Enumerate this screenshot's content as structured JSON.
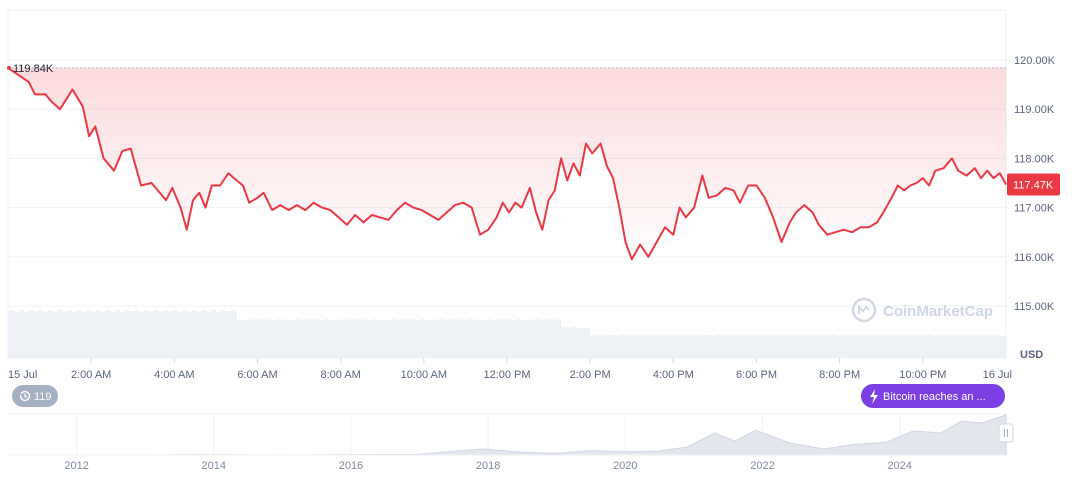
{
  "chart_data": {
    "type": "line",
    "currency_label": "USD",
    "start_value_label": "119.84K",
    "current_value_label": "117.47K",
    "yticks": [
      {
        "value": 115000,
        "label": "115.00K"
      },
      {
        "value": 116000,
        "label": "116.00K"
      },
      {
        "value": 117000,
        "label": "117.00K"
      },
      {
        "value": 118000,
        "label": "118.00K"
      },
      {
        "value": 119000,
        "label": "119.00K"
      },
      {
        "value": 120000,
        "label": "120.00K"
      }
    ],
    "xticks": [
      {
        "hour": 0,
        "label": "15 Jul"
      },
      {
        "hour": 2,
        "label": "2:00 AM"
      },
      {
        "hour": 4,
        "label": "4:00 AM"
      },
      {
        "hour": 6,
        "label": "6:00 AM"
      },
      {
        "hour": 8,
        "label": "8:00 AM"
      },
      {
        "hour": 10,
        "label": "10:00 AM"
      },
      {
        "hour": 12,
        "label": "12:00 PM"
      },
      {
        "hour": 14,
        "label": "2:00 PM"
      },
      {
        "hour": 16,
        "label": "4:00 PM"
      },
      {
        "hour": 18,
        "label": "6:00 PM"
      },
      {
        "hour": 20,
        "label": "8:00 PM"
      },
      {
        "hour": 22,
        "label": "10:00 PM"
      },
      {
        "hour": 24,
        "label": "16 Jul"
      }
    ],
    "series": [
      {
        "color": "#ea3943",
        "points": [
          [
            0.0,
            119840
          ],
          [
            0.5,
            119550
          ],
          [
            0.65,
            119300
          ],
          [
            0.9,
            119300
          ],
          [
            1.05,
            119150
          ],
          [
            1.25,
            119000
          ],
          [
            1.55,
            119400
          ],
          [
            1.8,
            119050
          ],
          [
            1.95,
            118450
          ],
          [
            2.1,
            118650
          ],
          [
            2.3,
            118000
          ],
          [
            2.55,
            117750
          ],
          [
            2.75,
            118150
          ],
          [
            2.95,
            118200
          ],
          [
            3.05,
            117900
          ],
          [
            3.2,
            117450
          ],
          [
            3.45,
            117500
          ],
          [
            3.6,
            117350
          ],
          [
            3.8,
            117150
          ],
          [
            3.95,
            117400
          ],
          [
            4.15,
            117000
          ],
          [
            4.3,
            116550
          ],
          [
            4.45,
            117150
          ],
          [
            4.6,
            117300
          ],
          [
            4.75,
            117000
          ],
          [
            4.9,
            117450
          ],
          [
            5.1,
            117450
          ],
          [
            5.3,
            117700
          ],
          [
            5.5,
            117550
          ],
          [
            5.65,
            117450
          ],
          [
            5.8,
            117100
          ],
          [
            6.0,
            117200
          ],
          [
            6.15,
            117300
          ],
          [
            6.35,
            116950
          ],
          [
            6.55,
            117050
          ],
          [
            6.75,
            116950
          ],
          [
            6.95,
            117050
          ],
          [
            7.15,
            116950
          ],
          [
            7.35,
            117100
          ],
          [
            7.55,
            117000
          ],
          [
            7.75,
            116950
          ],
          [
            7.95,
            116800
          ],
          [
            8.15,
            116650
          ],
          [
            8.35,
            116850
          ],
          [
            8.55,
            116700
          ],
          [
            8.75,
            116850
          ],
          [
            8.95,
            116800
          ],
          [
            9.15,
            116750
          ],
          [
            9.35,
            116950
          ],
          [
            9.55,
            117100
          ],
          [
            9.75,
            117000
          ],
          [
            9.95,
            116950
          ],
          [
            10.15,
            116850
          ],
          [
            10.35,
            116750
          ],
          [
            10.55,
            116900
          ],
          [
            10.75,
            117050
          ],
          [
            10.95,
            117100
          ],
          [
            11.15,
            117000
          ],
          [
            11.35,
            116450
          ],
          [
            11.55,
            116550
          ],
          [
            11.75,
            116800
          ],
          [
            11.9,
            117100
          ],
          [
            12.05,
            116900
          ],
          [
            12.2,
            117100
          ],
          [
            12.35,
            117000
          ],
          [
            12.55,
            117400
          ],
          [
            12.7,
            116900
          ],
          [
            12.85,
            116550
          ],
          [
            13.0,
            117150
          ],
          [
            13.15,
            117350
          ],
          [
            13.3,
            118000
          ],
          [
            13.45,
            117550
          ],
          [
            13.6,
            117900
          ],
          [
            13.75,
            117650
          ],
          [
            13.9,
            118300
          ],
          [
            14.05,
            118100
          ],
          [
            14.25,
            118300
          ],
          [
            14.4,
            117850
          ],
          [
            14.55,
            117600
          ],
          [
            14.7,
            117000
          ],
          [
            14.85,
            116300
          ],
          [
            15.0,
            115950
          ],
          [
            15.2,
            116250
          ],
          [
            15.4,
            116000
          ],
          [
            15.6,
            116300
          ],
          [
            15.8,
            116600
          ],
          [
            16.0,
            116450
          ],
          [
            16.15,
            117000
          ],
          [
            16.3,
            116800
          ],
          [
            16.5,
            117000
          ],
          [
            16.7,
            117650
          ],
          [
            16.85,
            117200
          ],
          [
            17.05,
            117250
          ],
          [
            17.25,
            117400
          ],
          [
            17.45,
            117350
          ],
          [
            17.6,
            117100
          ],
          [
            17.8,
            117450
          ],
          [
            18.0,
            117450
          ],
          [
            18.2,
            117200
          ],
          [
            18.4,
            116800
          ],
          [
            18.6,
            116300
          ],
          [
            18.8,
            116700
          ],
          [
            18.95,
            116900
          ],
          [
            19.15,
            117050
          ],
          [
            19.35,
            116900
          ],
          [
            19.5,
            116650
          ],
          [
            19.7,
            116450
          ],
          [
            19.9,
            116500
          ],
          [
            20.1,
            116550
          ],
          [
            20.3,
            116500
          ],
          [
            20.5,
            116600
          ],
          [
            20.7,
            116600
          ],
          [
            20.9,
            116700
          ],
          [
            21.05,
            116900
          ],
          [
            21.25,
            117200
          ],
          [
            21.4,
            117450
          ],
          [
            21.55,
            117350
          ],
          [
            21.7,
            117450
          ],
          [
            21.85,
            117500
          ],
          [
            22.0,
            117600
          ],
          [
            22.15,
            117450
          ],
          [
            22.3,
            117750
          ],
          [
            22.5,
            117800
          ],
          [
            22.7,
            118000
          ],
          [
            22.85,
            117750
          ],
          [
            23.05,
            117650
          ],
          [
            23.25,
            117800
          ],
          [
            23.4,
            117600
          ],
          [
            23.55,
            117750
          ],
          [
            23.7,
            117600
          ],
          [
            23.85,
            117700
          ],
          [
            24.0,
            117470
          ]
        ]
      }
    ],
    "volume_levels": [
      {
        "from_hour": 0.0,
        "to_hour": 5.5,
        "level": 0.96
      },
      {
        "from_hour": 5.5,
        "to_hour": 13.3,
        "level": 0.78
      },
      {
        "from_hour": 13.3,
        "to_hour": 14.0,
        "level": 0.62
      },
      {
        "from_hour": 14.0,
        "to_hour": 24.0,
        "level": 0.46
      }
    ],
    "navigator": {
      "year_ticks": [
        "2012",
        "2014",
        "2016",
        "2018",
        "2020",
        "2022",
        "2024"
      ],
      "points": [
        [
          2011.0,
          0.0
        ],
        [
          2012.0,
          0.0
        ],
        [
          2013.0,
          0.0
        ],
        [
          2013.8,
          0.01
        ],
        [
          2015.0,
          0.0
        ],
        [
          2016.0,
          0.01
        ],
        [
          2017.0,
          0.02
        ],
        [
          2017.9,
          0.15
        ],
        [
          2018.5,
          0.07
        ],
        [
          2019.0,
          0.04
        ],
        [
          2019.5,
          0.11
        ],
        [
          2020.0,
          0.08
        ],
        [
          2020.5,
          0.1
        ],
        [
          2020.9,
          0.2
        ],
        [
          2021.3,
          0.55
        ],
        [
          2021.6,
          0.35
        ],
        [
          2021.9,
          0.62
        ],
        [
          2022.4,
          0.3
        ],
        [
          2022.9,
          0.15
        ],
        [
          2023.3,
          0.26
        ],
        [
          2023.8,
          0.32
        ],
        [
          2024.2,
          0.6
        ],
        [
          2024.6,
          0.55
        ],
        [
          2024.9,
          0.85
        ],
        [
          2025.2,
          0.8
        ],
        [
          2025.55,
          1.0
        ]
      ]
    }
  },
  "event_badge": {
    "count": "119"
  },
  "news_pill": {
    "label": "Bitcoin reaches an ..."
  },
  "watermark": {
    "label": "CoinMarketCap"
  }
}
